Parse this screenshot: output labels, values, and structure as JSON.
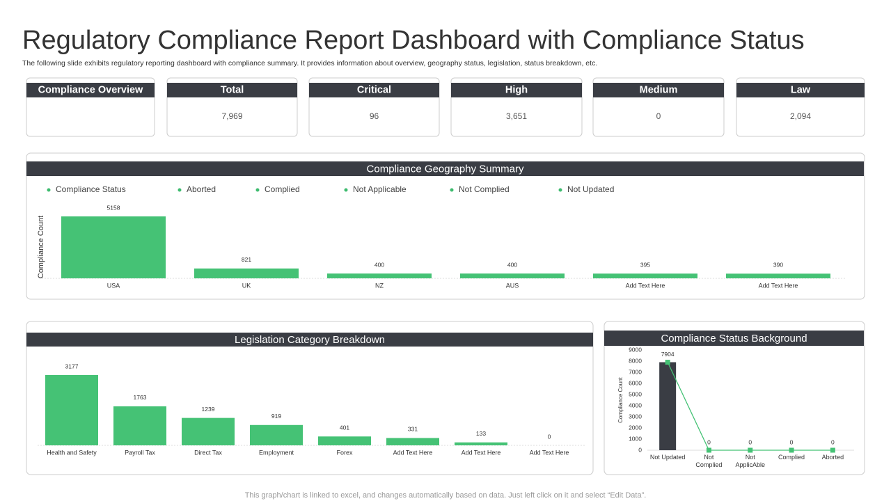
{
  "header": {
    "title": "Regulatory Compliance Report Dashboard with Compliance Status",
    "subtitle": "The following slide exhibits regulatory reporting dashboard with compliance summary. It provides information about overview, geography status, legislation, status breakdown, etc."
  },
  "cards": [
    {
      "label": "Compliance Overview"
    },
    {
      "label": "Total",
      "value": "7,969"
    },
    {
      "label": "Critical",
      "value": "96"
    },
    {
      "label": "High",
      "value": "3,651"
    },
    {
      "label": "Medium",
      "value": "0"
    },
    {
      "label": "Law",
      "value": "2,094"
    }
  ],
  "chart_data": [
    {
      "type": "bar",
      "title": "Compliance Geography Summary",
      "legend": [
        "Compliance  Status",
        "Aborted",
        "Complied",
        "Not Applicable",
        "Not Complied",
        "Not Updated"
      ],
      "legend_color": "#3dbb6e",
      "y_label": "Compliance  Count",
      "categories": [
        "USA",
        "UK",
        "NZ",
        "AUS",
        "Add Text Here",
        "Add Text Here"
      ],
      "values": [
        5158,
        821,
        400,
        400,
        395,
        390
      ],
      "color": "#45c275",
      "ylim": [
        0,
        5500
      ]
    },
    {
      "type": "bar",
      "title": "Legislation Category Breakdown",
      "categories": [
        "Health and Safety",
        "Payroll Tax",
        "Direct Tax",
        "Employment",
        "Forex",
        "Add Text Here",
        "Add Text Here",
        "Add Text Here"
      ],
      "values": [
        3177,
        1763,
        1239,
        919,
        401,
        331,
        133,
        0
      ],
      "color": "#45c275",
      "ylim": [
        0,
        3500
      ]
    },
    {
      "type": "combo",
      "title": "Compliance Status Background",
      "y_label": "Compliance Count",
      "categories": [
        "Not Updated",
        "Not Complied",
        "Not ApplicAble",
        "Complied",
        "Aborted"
      ],
      "series": [
        {
          "type": "bar",
          "color": "#3a3d44",
          "values": [
            7904,
            0,
            0,
            0,
            0
          ]
        },
        {
          "type": "line",
          "color": "#45c275",
          "values": [
            7904,
            0,
            0,
            0,
            0
          ]
        }
      ],
      "ylim": [
        0,
        9000
      ],
      "yticks": [
        0,
        1000,
        2000,
        3000,
        4000,
        5000,
        6000,
        7000,
        8000,
        9000
      ]
    }
  ],
  "footer": "This graph/chart is linked to excel,  and changes automatically based on data. Just left click on it and select “Edit Data”."
}
